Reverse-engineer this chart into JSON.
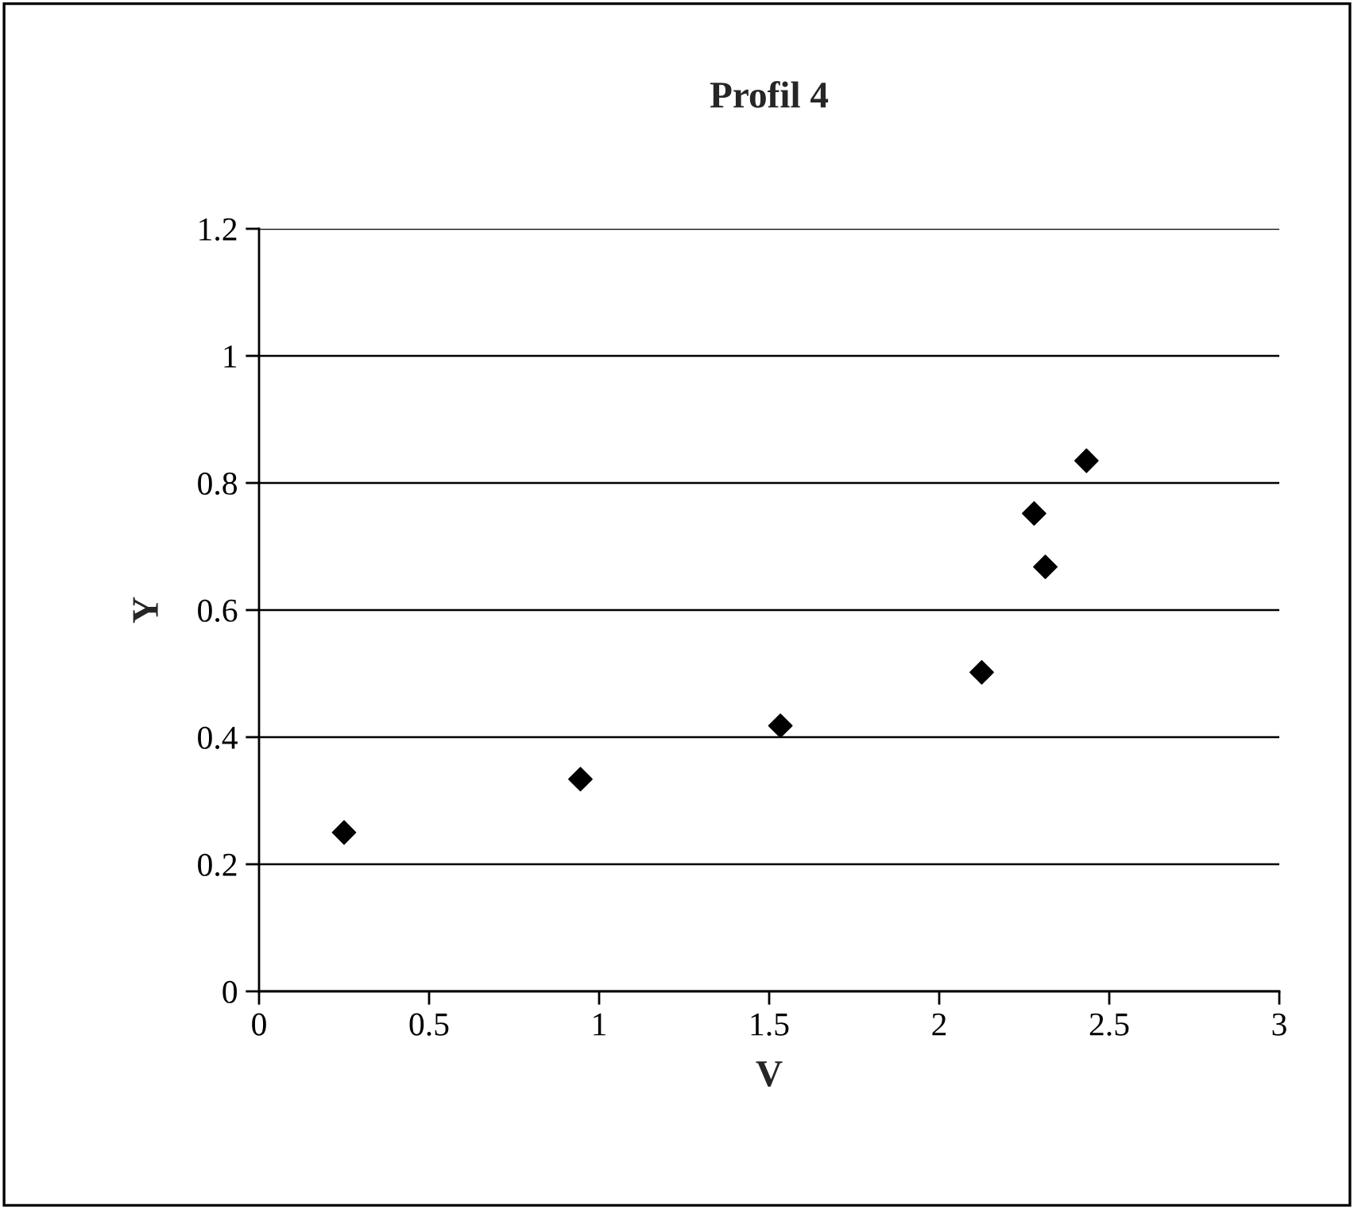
{
  "chart_data": {
    "type": "scatter",
    "title": "Profil 4",
    "xlabel": "V",
    "ylabel": "Y",
    "x": [
      0.25,
      0.945,
      1.533,
      2.125,
      2.279,
      2.312,
      2.433
    ],
    "values": [
      0.25,
      0.334,
      0.418,
      0.502,
      0.752,
      0.668,
      0.835
    ],
    "color": "#000000",
    "marker": "diamond",
    "xlim": [
      0,
      3
    ],
    "xticks": [
      0,
      0.5,
      1,
      1.5,
      2,
      2.5,
      3
    ],
    "ylim": [
      0,
      1.2
    ],
    "yticks": [
      0,
      0.2,
      0.4,
      0.6,
      0.8,
      1,
      1.2
    ],
    "grid": "y",
    "legend": false
  }
}
